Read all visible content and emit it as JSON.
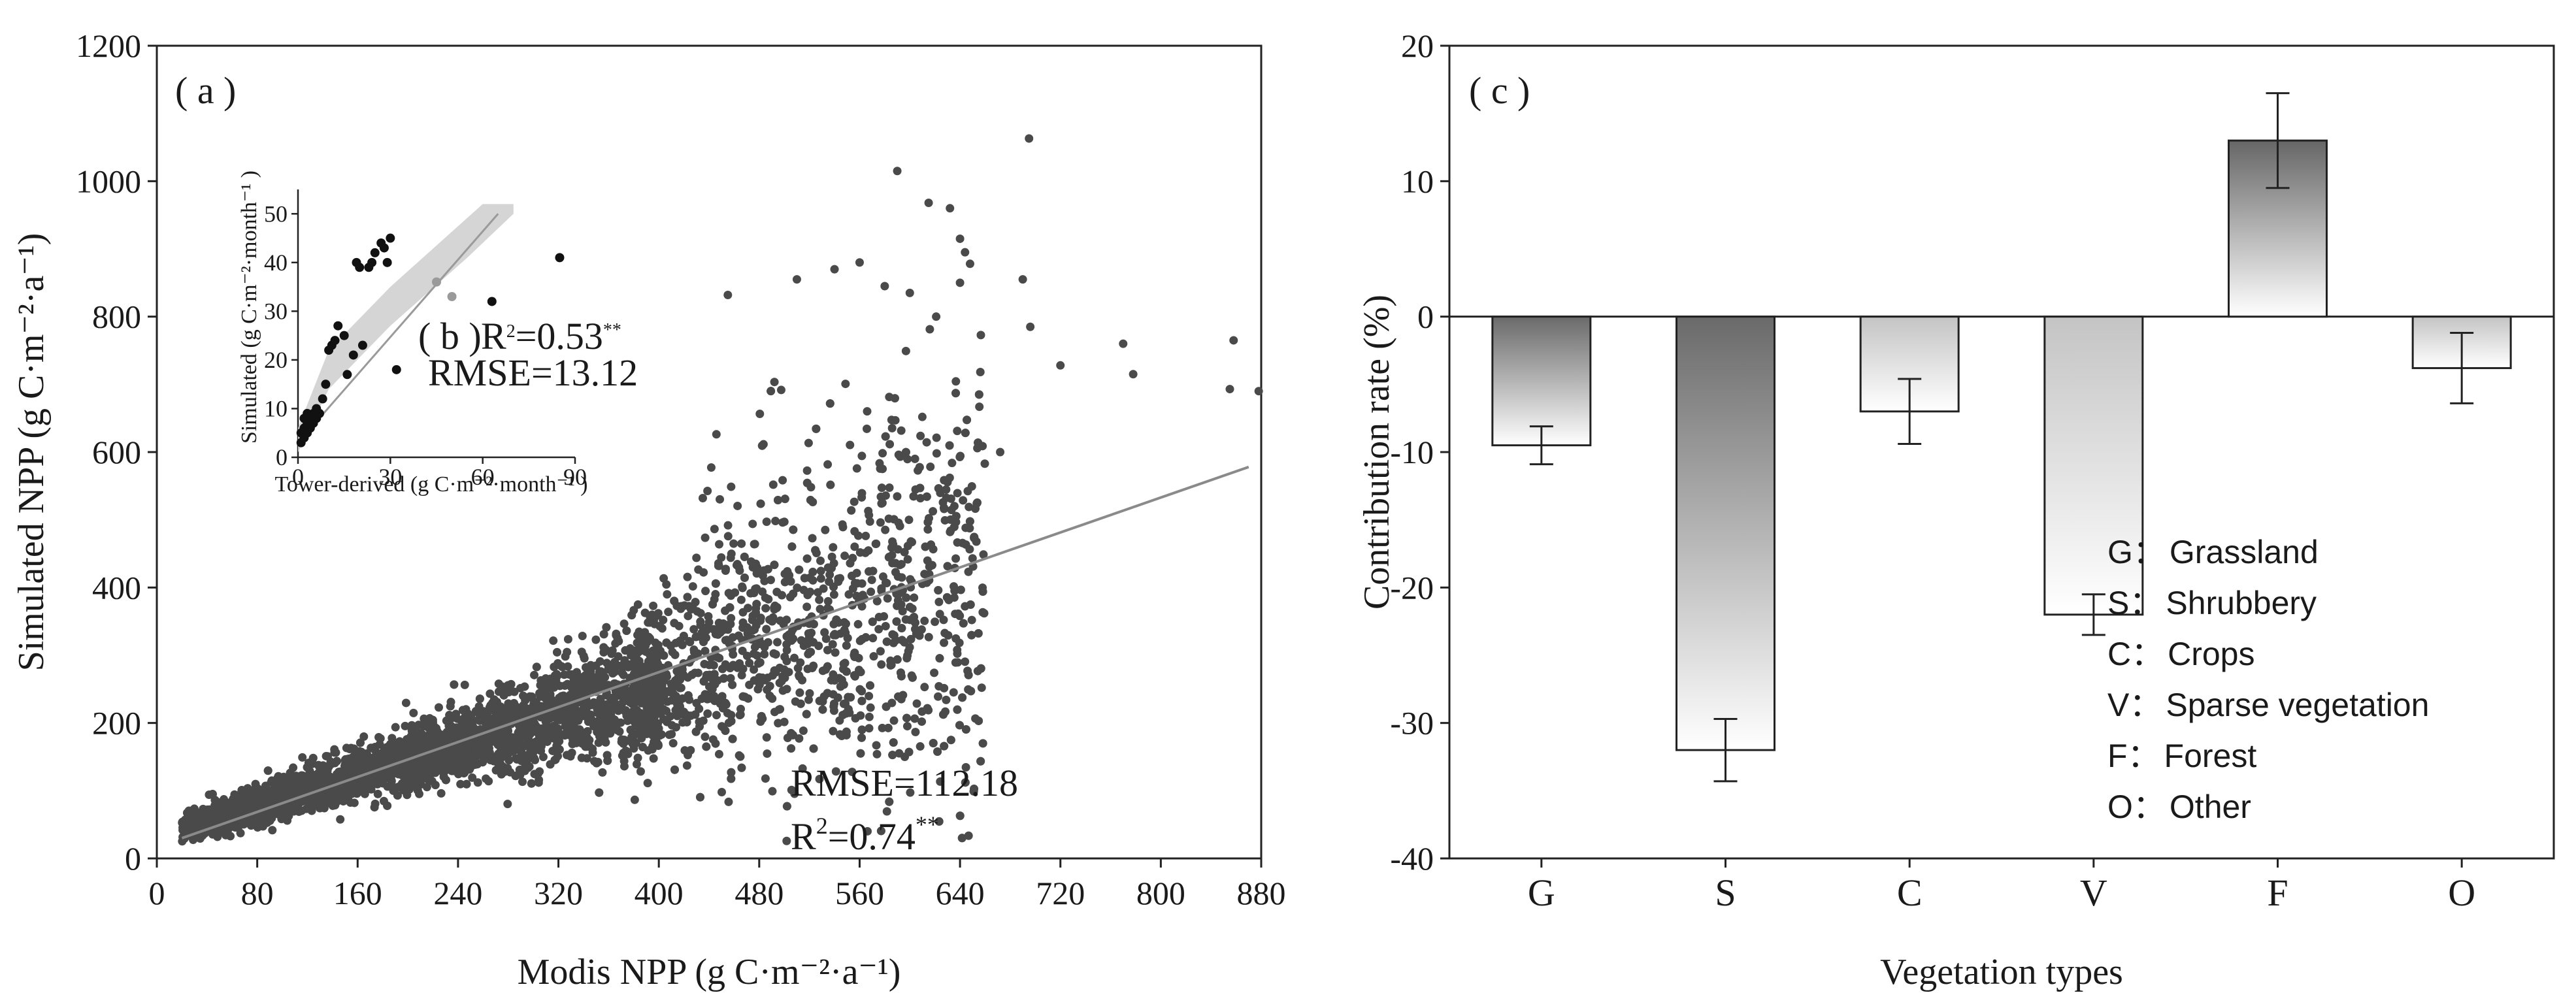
{
  "chart_data": [
    {
      "type": "scatter",
      "panel_label": "( a )",
      "xlabel": "Modis NPP  (g C·m⁻²·a⁻¹)",
      "ylabel": "Simulated  NPP (g C·m⁻²·a⁻¹)",
      "xlim": [
        0,
        880
      ],
      "ylim": [
        0,
        1200
      ],
      "xticks": [
        "0",
        "80",
        "160",
        "240",
        "320",
        "400",
        "480",
        "560",
        "640",
        "720",
        "800",
        "880"
      ],
      "yticks": [
        "0",
        "200",
        "400",
        "600",
        "800",
        "1000",
        "1200"
      ],
      "grid": false,
      "point_color": "#4a4a4a",
      "points_description_count": 5000,
      "regression_line": {
        "x": [
          20,
          870
        ],
        "y": [
          30,
          578
        ]
      },
      "rmse_text": "RMSE=112.18",
      "r2_text": "R",
      "r2_sup": "2",
      "r2_value": "=0.74",
      "r2_sig": "**",
      "outliers": [
        [
          695,
          1063
        ],
        [
          590,
          1015
        ],
        [
          615,
          968
        ],
        [
          632,
          960
        ],
        [
          640,
          915
        ],
        [
          644,
          895
        ],
        [
          648,
          878
        ],
        [
          640,
          850
        ],
        [
          690,
          855
        ],
        [
          770,
          760
        ],
        [
          778,
          715
        ],
        [
          858,
          765
        ],
        [
          855,
          693
        ],
        [
          878,
          690
        ],
        [
          696,
          785
        ],
        [
          720,
          728
        ],
        [
          672,
          600
        ],
        [
          560,
          880
        ],
        [
          580,
          845
        ],
        [
          540,
          870
        ],
        [
          510,
          855
        ],
        [
          455,
          832
        ],
        [
          600,
          835
        ],
        [
          621,
          800
        ]
      ]
    },
    {
      "type": "scatter",
      "panel_label": "( b )",
      "xlabel": "Tower-derived  (g C·m⁻²·month⁻¹ )",
      "ylabel": "Simulated  (g C·m⁻²·month⁻¹ )",
      "xlim": [
        0,
        90
      ],
      "ylim": [
        0,
        55
      ],
      "xticks": [
        "0",
        "30",
        "60",
        "90"
      ],
      "yticks": [
        "0",
        "10",
        "20",
        "30",
        "40",
        "50"
      ],
      "r2_text": "R",
      "r2_sup": "2",
      "r2_value": "=0.53",
      "r2_sig": "**",
      "rmse_text": "RMSE=13.12",
      "points": [
        [
          1,
          3
        ],
        [
          1,
          5
        ],
        [
          2,
          4
        ],
        [
          2,
          6
        ],
        [
          2,
          8
        ],
        [
          3,
          5
        ],
        [
          3,
          7
        ],
        [
          3,
          9
        ],
        [
          4,
          6
        ],
        [
          4,
          8
        ],
        [
          5,
          9
        ],
        [
          5,
          7
        ],
        [
          6,
          10
        ],
        [
          6,
          8
        ],
        [
          7,
          9
        ],
        [
          8,
          12
        ],
        [
          9,
          15
        ],
        [
          10,
          22
        ],
        [
          11,
          23
        ],
        [
          12,
          24
        ],
        [
          13,
          27
        ],
        [
          15,
          25
        ],
        [
          16,
          17
        ],
        [
          18,
          21
        ],
        [
          19,
          40
        ],
        [
          20,
          39
        ],
        [
          21,
          23
        ],
        [
          23,
          39
        ],
        [
          24,
          40
        ],
        [
          25,
          42
        ],
        [
          27,
          44
        ],
        [
          28,
          43
        ],
        [
          29,
          40
        ],
        [
          30,
          45
        ],
        [
          32,
          18
        ],
        [
          45,
          36
        ],
        [
          50,
          33
        ],
        [
          63,
          32
        ],
        [
          85,
          41
        ]
      ],
      "band_color": "#d0d0d0",
      "line_color": "#9a9a9a"
    },
    {
      "type": "bar",
      "panel_label": "( c )",
      "xlabel": "Vegetation types",
      "ylabel": "Contribution rate (%)",
      "ylim": [
        -40,
        20
      ],
      "yticks": [
        "20",
        "10",
        "0",
        "-10",
        "-20",
        "-30",
        "-40"
      ],
      "categories": [
        "G",
        "S",
        "C",
        "V",
        "F",
        "O"
      ],
      "values": [
        -9.5,
        -32,
        -7,
        -22,
        13,
        -3.8
      ],
      "errors": [
        1.4,
        2.3,
        2.4,
        1.5,
        3.5,
        2.6
      ],
      "legend": [
        {
          "key": "G：",
          "label": "Grassland"
        },
        {
          "key": "S：",
          "label": "Shrubbery"
        },
        {
          "key": "C：",
          "label": "Crops"
        },
        {
          "key": "V：",
          "label": "Sparse vegetation"
        },
        {
          "key": "F：",
          "label": "Forest"
        },
        {
          "key": "O：",
          "label": "Other"
        }
      ]
    }
  ]
}
